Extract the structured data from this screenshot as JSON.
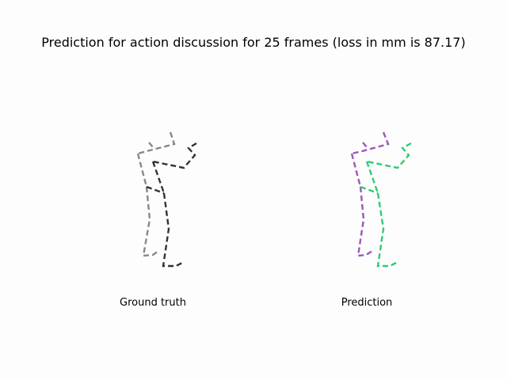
{
  "title": "Prediction for action discussion for 25 frames (loss in mm is 87.17)",
  "panels": [
    {
      "caption": "Ground truth",
      "colors": {
        "left": "#888888",
        "right": "#333333"
      }
    },
    {
      "caption": "Prediction",
      "colors": {
        "left": "#9b59b6",
        "right": "#2ecc71"
      }
    }
  ]
}
